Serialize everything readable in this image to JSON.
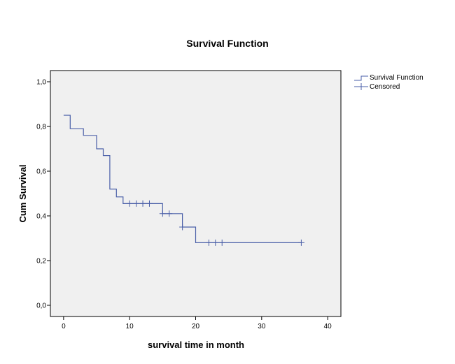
{
  "chart_data": {
    "type": "line",
    "subtype": "kaplan-meier step",
    "title": "Survival Function",
    "xlabel": "survival time in month",
    "ylabel": "Cum Survival",
    "xlim": [
      -2,
      42
    ],
    "ylim": [
      -0.05,
      1.05
    ],
    "x_ticks": [
      0,
      10,
      20,
      30,
      40
    ],
    "x_tick_labels": [
      "0",
      "10",
      "20",
      "30",
      "40"
    ],
    "y_ticks": [
      0.0,
      0.2,
      0.4,
      0.6,
      0.8,
      1.0
    ],
    "y_tick_labels": [
      "0,0",
      "0,2",
      "0,4",
      "0,6",
      "0,8",
      "1,0"
    ],
    "grid": false,
    "plot_background": "#f0f0f0",
    "legend_position": "top-right, outside plot",
    "series": [
      {
        "name": "Survival Function",
        "color": "#4a5fa8",
        "steps": [
          {
            "x": 0,
            "y": 0.85
          },
          {
            "x": 1,
            "y": 0.79
          },
          {
            "x": 3,
            "y": 0.76
          },
          {
            "x": 5,
            "y": 0.7
          },
          {
            "x": 6,
            "y": 0.67
          },
          {
            "x": 7,
            "y": 0.52
          },
          {
            "x": 8,
            "y": 0.485
          },
          {
            "x": 9,
            "y": 0.455
          },
          {
            "x": 15,
            "y": 0.41
          },
          {
            "x": 18,
            "y": 0.35
          },
          {
            "x": 20,
            "y": 0.28
          }
        ],
        "end_x": 36
      },
      {
        "name": "Censored",
        "color": "#4a5fa8",
        "marker": "+",
        "points": [
          {
            "x": 10,
            "y": 0.455
          },
          {
            "x": 11,
            "y": 0.455
          },
          {
            "x": 12,
            "y": 0.455
          },
          {
            "x": 13,
            "y": 0.455
          },
          {
            "x": 15,
            "y": 0.41
          },
          {
            "x": 16,
            "y": 0.41
          },
          {
            "x": 18,
            "y": 0.35
          },
          {
            "x": 22,
            "y": 0.28
          },
          {
            "x": 23,
            "y": 0.28
          },
          {
            "x": 24,
            "y": 0.28
          },
          {
            "x": 36,
            "y": 0.28
          }
        ]
      }
    ]
  }
}
